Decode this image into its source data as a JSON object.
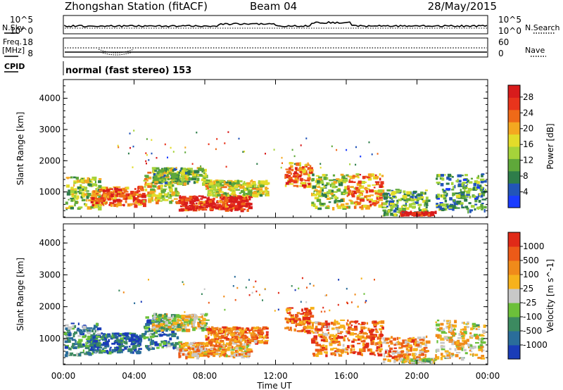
{
  "header": {
    "station": "Zhongshan Station (fitACF)",
    "beam": "Beam 04",
    "date": "28/May/2015"
  },
  "strip_labels": {
    "nsky": "N.Sky",
    "nsearch": "N.Search",
    "freq_line1": "Freq.",
    "freq_line2": "[MHz]",
    "nave": "Nave",
    "cpid": "CPID",
    "cpid_text": "normal (fast stereo) 153"
  },
  "strip_ticks": {
    "noise_left": [
      "10^5",
      "10^0"
    ],
    "noise_right": [
      "10^5",
      "10^0"
    ],
    "freq_left": [
      "18",
      "8"
    ],
    "nave_right": [
      "60",
      "0"
    ]
  },
  "chart_data": [
    {
      "type": "heatmap",
      "name": "power-panel",
      "xlabel": "Time UT",
      "ylabel": "Slant Range [km]",
      "xticks": [
        "00:00",
        "04:00",
        "08:00",
        "12:00",
        "16:00",
        "20:00",
        "00:00"
      ],
      "yticks": [
        "1000",
        "2000",
        "3000",
        "4000"
      ],
      "xlim_hours": [
        0,
        24
      ],
      "ylim_km": [
        180,
        4600
      ],
      "colorbar": {
        "label": "Power [dB]",
        "ticks": [
          "4",
          "8",
          "12",
          "16",
          "20",
          "24",
          "28"
        ],
        "range": [
          0,
          31
        ],
        "colors": [
          "#1a3cff",
          "#2255b8",
          "#2e7d4a",
          "#5fa83a",
          "#a5d33a",
          "#e3dc2a",
          "#f4a820",
          "#ef6a18",
          "#e8341c",
          "#d81c1c"
        ]
      },
      "echo_regions": [
        {
          "t0": 0.0,
          "t1": 2.0,
          "r0": 500,
          "r1": 1500,
          "level": 0.45
        },
        {
          "t0": 1.5,
          "t1": 4.5,
          "r0": 600,
          "r1": 1200,
          "level": 0.8
        },
        {
          "t0": 4.5,
          "t1": 6.5,
          "r0": 700,
          "r1": 1700,
          "level": 0.55
        },
        {
          "t0": 5.0,
          "t1": 8.0,
          "r0": 1300,
          "r1": 1800,
          "level": 0.4
        },
        {
          "t0": 6.5,
          "t1": 10.5,
          "r0": 450,
          "r1": 900,
          "level": 0.9
        },
        {
          "t0": 8.0,
          "t1": 11.5,
          "r0": 900,
          "r1": 1400,
          "level": 0.5
        },
        {
          "t0": 12.5,
          "t1": 14.0,
          "r0": 1200,
          "r1": 2000,
          "level": 0.75
        },
        {
          "t0": 14.0,
          "t1": 16.0,
          "r0": 500,
          "r1": 1600,
          "level": 0.45
        },
        {
          "t0": 16.0,
          "t1": 18.0,
          "r0": 500,
          "r1": 1600,
          "level": 0.7
        },
        {
          "t0": 18.0,
          "t1": 20.5,
          "r0": 200,
          "r1": 1100,
          "level": 0.35
        },
        {
          "t0": 19.0,
          "t1": 21.0,
          "r0": 180,
          "r1": 400,
          "level": 0.95
        },
        {
          "t0": 21.0,
          "t1": 24.0,
          "r0": 400,
          "r1": 1600,
          "level": 0.3
        }
      ]
    },
    {
      "type": "heatmap",
      "name": "velocity-panel",
      "xlabel": "Time UT",
      "ylabel": "Slant Range [km]",
      "xticks": [
        "00:00",
        "04:00",
        "08:00",
        "12:00",
        "16:00",
        "20:00",
        "00:00"
      ],
      "yticks": [
        "1000",
        "2000",
        "3000",
        "4000"
      ],
      "xlim_hours": [
        0,
        24
      ],
      "ylim_km": [
        180,
        4600
      ],
      "colorbar": {
        "label": "Velocity [m s^-1]",
        "ticks": [
          "1000",
          "500",
          "100",
          "25",
          "-25",
          "-100",
          "-500",
          "-1000"
        ],
        "colors": [
          "#1a3cb8",
          "#2a6d9a",
          "#3c8a60",
          "#6cc03a",
          "#c8c8c8",
          "#f6b21c",
          "#f08a1a",
          "#ec5a18",
          "#e02a18"
        ]
      },
      "echo_regions": [
        {
          "t0": 0.0,
          "t1": 2.0,
          "r0": 500,
          "r1": 1500,
          "level": 0.3
        },
        {
          "t0": 1.5,
          "t1": 4.5,
          "r0": 600,
          "r1": 1200,
          "level": 0.15
        },
        {
          "t0": 4.5,
          "t1": 6.5,
          "r0": 700,
          "r1": 1700,
          "level": 0.25
        },
        {
          "t0": 5.0,
          "t1": 8.0,
          "r0": 1300,
          "r1": 1800,
          "level": 0.5
        },
        {
          "t0": 6.5,
          "t1": 10.5,
          "r0": 450,
          "r1": 900,
          "level": 0.65
        },
        {
          "t0": 8.0,
          "t1": 11.5,
          "r0": 900,
          "r1": 1400,
          "level": 0.75
        },
        {
          "t0": 12.5,
          "t1": 14.0,
          "r0": 1200,
          "r1": 2000,
          "level": 0.8
        },
        {
          "t0": 14.0,
          "t1": 16.0,
          "r0": 500,
          "r1": 1600,
          "level": 0.75
        },
        {
          "t0": 16.0,
          "t1": 18.0,
          "r0": 500,
          "r1": 1600,
          "level": 0.8
        },
        {
          "t0": 18.0,
          "t1": 20.5,
          "r0": 200,
          "r1": 1100,
          "level": 0.7
        },
        {
          "t0": 19.0,
          "t1": 21.0,
          "r0": 180,
          "r1": 400,
          "level": 0.5
        },
        {
          "t0": 21.0,
          "t1": 24.0,
          "r0": 400,
          "r1": 1600,
          "level": 0.55
        }
      ]
    }
  ]
}
